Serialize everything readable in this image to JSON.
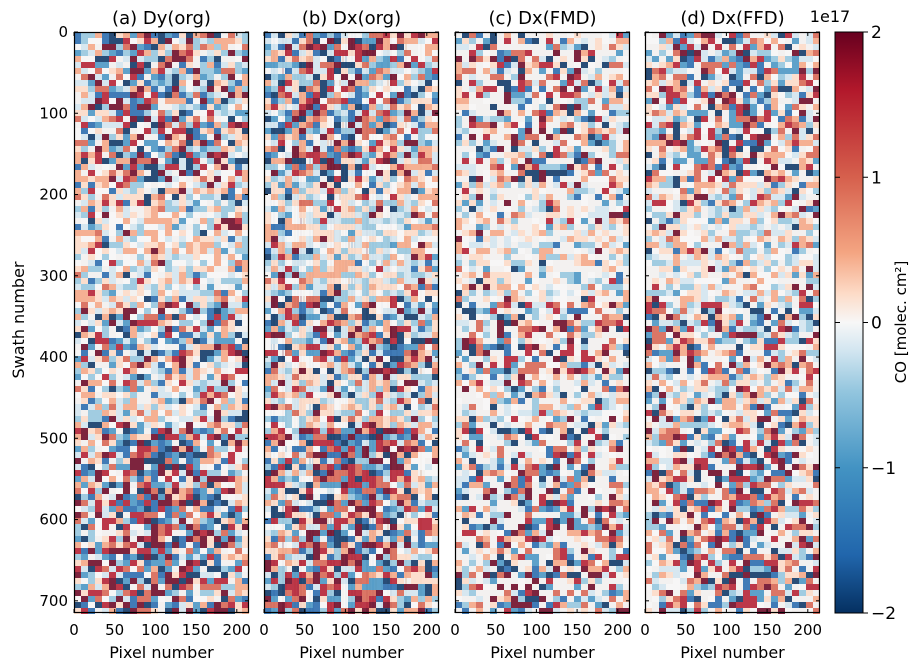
{
  "chart_data": {
    "type": "heatmap",
    "panels": [
      {
        "title": "(a) Dy(org)",
        "xlabel": "Pixel number"
      },
      {
        "title": "(b) Dx(org)",
        "xlabel": "Pixel number"
      },
      {
        "title": "(c) Dx(FMD)",
        "xlabel": "Pixel number"
      },
      {
        "title": "(d) Dx(FFD)",
        "xlabel": "Pixel number"
      }
    ],
    "ylabel": "Swath number",
    "xlim": [
      0,
      215
    ],
    "ylim": [
      715,
      0
    ],
    "x_ticks": [
      0,
      50,
      100,
      150,
      200
    ],
    "y_ticks": [
      0,
      100,
      200,
      300,
      400,
      500,
      600,
      700
    ],
    "colorbar": {
      "label": "CO [molec. cm²]",
      "exponent": "1e17",
      "range": [
        -2,
        2
      ],
      "ticks": [
        {
          "value": 2,
          "label": "2"
        },
        {
          "value": 1,
          "label": "1"
        },
        {
          "value": 0,
          "label": "0"
        },
        {
          "value": -1,
          "label": "−1"
        },
        {
          "value": -2,
          "label": "−2"
        }
      ],
      "colormap": "RdBu_r",
      "colors": {
        "high": "#b2182b",
        "mid": "#f7f7f7",
        "low": "#2166ac"
      }
    }
  }
}
